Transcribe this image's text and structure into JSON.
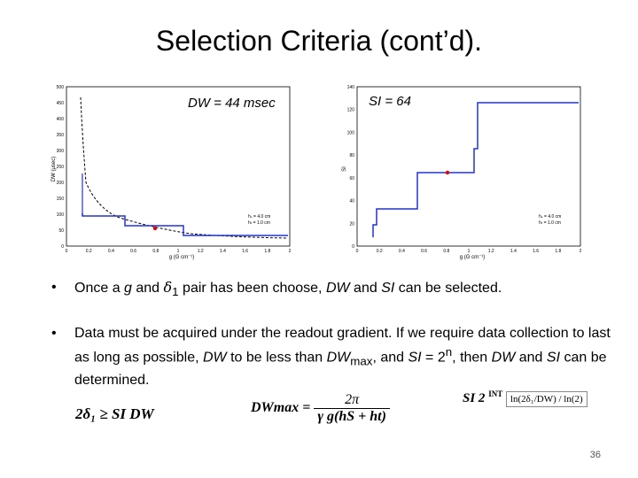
{
  "slide": {
    "title": "Selection Criteria (cont’d).",
    "page_number": "36"
  },
  "plots": {
    "left": {
      "annotation": "DW = 44 msec",
      "xlabel": "g (G cm⁻¹)",
      "ylabel": "DW (μsec)",
      "xticks": [
        "0",
        "0.2",
        "0.4",
        "0.6",
        "0.8",
        "1",
        "1.2",
        "1.4",
        "1.6",
        "1.8",
        "2"
      ],
      "yticks": [
        "0",
        "50",
        "100",
        "150",
        "200",
        "250",
        "300",
        "350",
        "400",
        "450",
        "500"
      ],
      "legend": [
        "hₛ = 4.0 cm",
        "hₜ = 1.0 cm"
      ]
    },
    "right": {
      "annotation": "SI = 64",
      "xlabel": "g (G cm⁻¹)",
      "ylabel": "SI",
      "xticks": [
        "0",
        "0.2",
        "0.4",
        "0.6",
        "0.8",
        "1",
        "1.2",
        "1.4",
        "1.6",
        "1.8",
        "2"
      ],
      "yticks": [
        "0",
        "20",
        "40",
        "60",
        "80",
        "100",
        "120",
        "140"
      ],
      "legend": [
        "hₛ = 4.0 cm",
        "hₜ = 1.0 cm"
      ]
    }
  },
  "bullets": {
    "b1": {
      "dot": "•",
      "t1": "Once a ",
      "g": "g",
      "t2": " and ",
      "delta": "δ",
      "sub1": "1",
      "t3": " pair has been choose, ",
      "dw": "DW",
      "t4": " and ",
      "si": "SI",
      "t5": " can be selected."
    },
    "b2": {
      "dot": "•",
      "t1": "Data must be acquired under the readout gradient.  If we require data collection to last as long as possible, ",
      "dw": "DW",
      "t2": " to be less than ",
      "dwmax": "DW",
      "max": "max",
      "t3": ", and ",
      "si": "SI",
      "t4": " = 2",
      "n": "n",
      "t5": ", then ",
      "dw2": "DW",
      "t6": " and ",
      "si2": "SI",
      "t7": " can be determined."
    }
  },
  "formulas": {
    "f1": "2δ₁ ≥ SI DW",
    "f2_lhs": "DWmax =",
    "f2_num": "2π",
    "f2_den": "γ g(hS + ht)",
    "f3_lhs": "SI   2",
    "f3_int": "INT",
    "f3_box": "ln(2δ₁/DW) / ln(2)"
  }
}
